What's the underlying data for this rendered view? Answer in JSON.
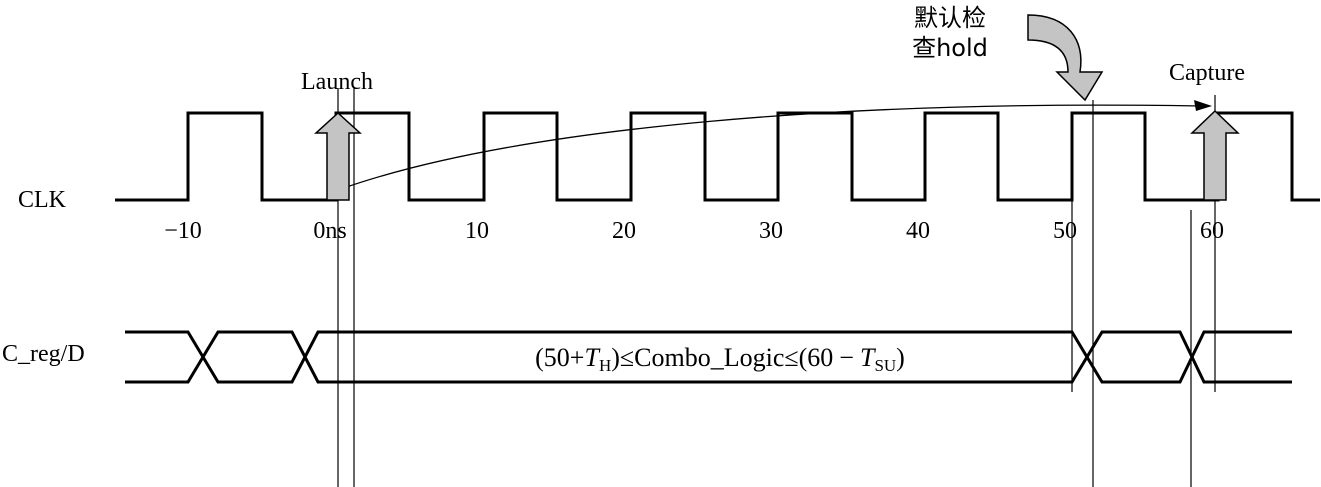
{
  "labels": {
    "launch": "Launch",
    "capture": "Capture",
    "default_hold_line1": "默认检",
    "default_hold_line2": "查hold",
    "clk": "CLK",
    "data_signal": "C_reg/D"
  },
  "time_axis": {
    "ticks": [
      {
        "value": -10,
        "label": "−10"
      },
      {
        "value": 0,
        "label": "0ns"
      },
      {
        "value": 10,
        "label": "10"
      },
      {
        "value": 20,
        "label": "20"
      },
      {
        "value": 30,
        "label": "30"
      },
      {
        "value": 40,
        "label": "40"
      },
      {
        "value": 50,
        "label": "50"
      },
      {
        "value": 60,
        "label": "60"
      }
    ]
  },
  "constraint": {
    "open": "(50+",
    "th_var": "T",
    "th_sub": "H",
    "middle": ")≤Combo_Logic≤(60",
    "minus": "−",
    "tsu_var": "T",
    "tsu_sub": "SU",
    "close": ")"
  },
  "colors": {
    "line": "#000000",
    "arrow_fill": "#c4c4c4"
  },
  "icons": {
    "launch_edge": "up-arrow-icon",
    "capture_edge": "up-arrow-icon",
    "hold_check": "curved-down-arrow-icon"
  }
}
